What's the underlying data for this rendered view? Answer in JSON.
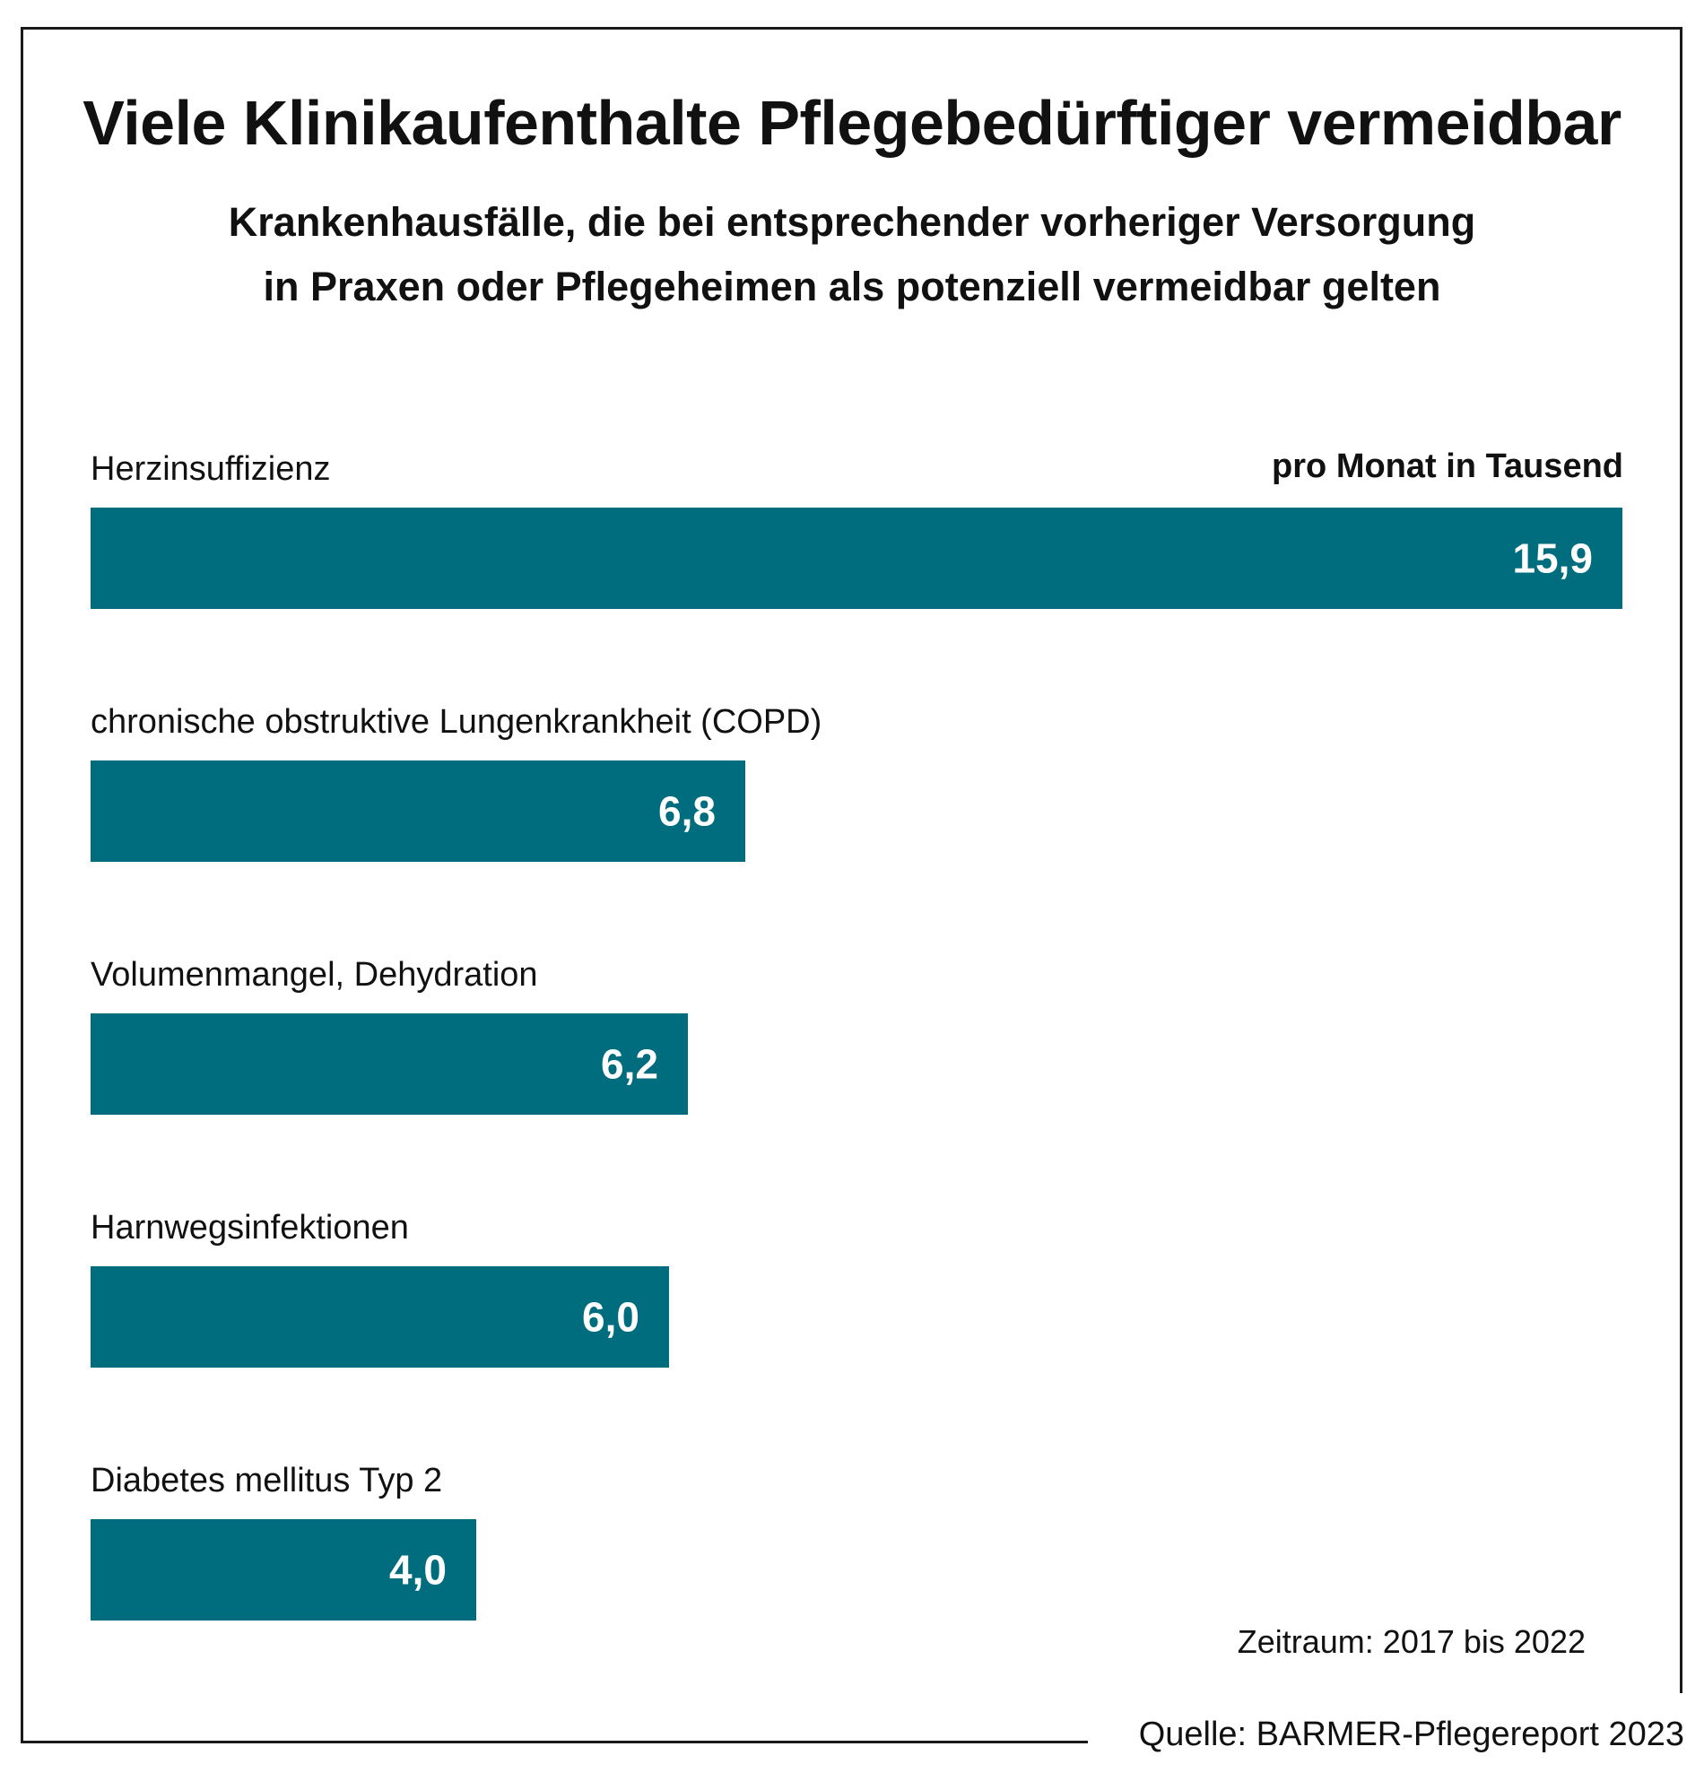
{
  "title": "Viele Klinikaufenthalte Pflegebedürftiger vermeidbar",
  "subtitle_line1": "Krankenhausfälle, die bei entsprechender vorheriger Versorgung",
  "subtitle_line2": "in Praxen oder Pflegeheimen als potenziell vermeidbar gelten",
  "unit_label": "pro Monat in Tausend",
  "period": "Zeitraum: 2017 bis 2022",
  "source": "Quelle: BARMER-Pflegereport 2023",
  "colors": {
    "bar": "#006d7e",
    "value_text": "#ffffff",
    "text": "#111111"
  },
  "chart_data": {
    "type": "bar",
    "orientation": "horizontal",
    "title": "Viele Klinikaufenthalte Pflegebedürftiger vermeidbar",
    "unit": "pro Monat in Tausend",
    "categories": [
      "Herzinsuffizienz",
      "chronische obstruktive Lungenkrankheit (COPD)",
      "Volumenmangel, Dehydration",
      "Harnwegsinfektionen",
      "Diabetes mellitus Typ 2"
    ],
    "values": [
      15.9,
      6.8,
      6.2,
      6.0,
      4.0
    ],
    "value_labels": [
      "15,9",
      "6,8",
      "6,2",
      "6,0",
      "4,0"
    ],
    "xlim": [
      0,
      15.9
    ],
    "grid": false,
    "legend": "none"
  }
}
